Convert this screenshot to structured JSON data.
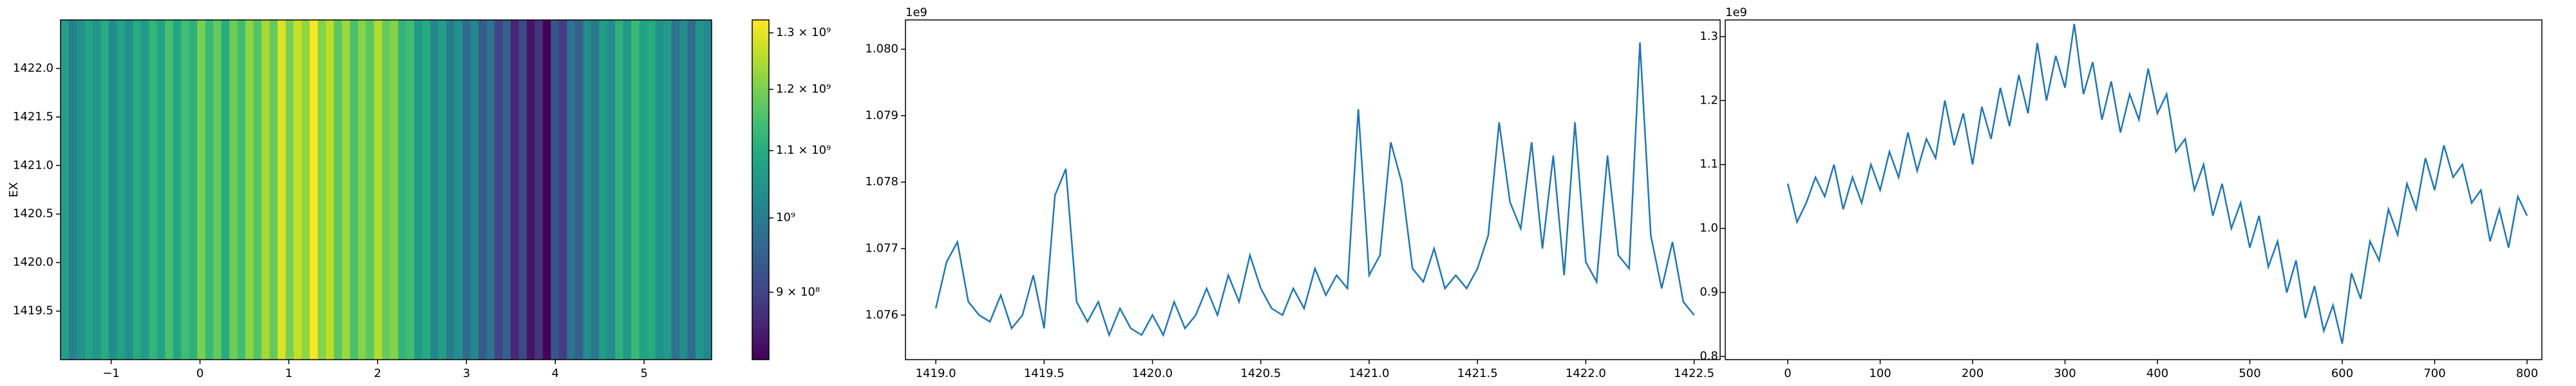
{
  "chart_data": [
    {
      "type": "heatmap",
      "y_label": "EX",
      "colormap": "viridis",
      "log_color": true,
      "xlim": [
        -1.57,
        5.76
      ],
      "ylim": [
        1419.0,
        1422.5
      ],
      "xticks": [
        {
          "value": -1,
          "label": "−1"
        },
        0,
        1,
        2,
        3,
        4,
        5
      ],
      "yticks": [
        1419.5,
        {
          "value": 1420,
          "label": "1420.0"
        },
        1420.5,
        {
          "value": 1421,
          "label": "1421.0"
        },
        1421.5,
        {
          "value": 1422,
          "label": "1422.0"
        }
      ],
      "clim": [
        818000000.0,
        1324000000.0
      ],
      "cticks": [
        {
          "value": 900000000.0,
          "label": "9 × 10⁸"
        },
        {
          "value": 1000000000.0,
          "label": "10⁹"
        },
        {
          "value": 1100000000.0,
          "label": "1.1 × 10⁹"
        },
        {
          "value": 1200000000.0,
          "label": "1.2 × 10⁹"
        },
        {
          "value": 1300000000.0,
          "label": "1.3 × 10⁹"
        }
      ],
      "values": [
        1070000000.0,
        1010000000.0,
        1040000000.0,
        1080000000.0,
        1050000000.0,
        1100000000.0,
        1030000000.0,
        1080000000.0,
        1040000000.0,
        1100000000.0,
        1060000000.0,
        1120000000.0,
        1080000000.0,
        1150000000.0,
        1090000000.0,
        1140000000.0,
        1110000000.0,
        1200000000.0,
        1130000000.0,
        1180000000.0,
        1100000000.0,
        1190000000.0,
        1140000000.0,
        1220000000.0,
        1160000000.0,
        1240000000.0,
        1180000000.0,
        1290000000.0,
        1200000000.0,
        1270000000.0,
        1220000000.0,
        1320000000.0,
        1210000000.0,
        1260000000.0,
        1170000000.0,
        1230000000.0,
        1150000000.0,
        1210000000.0,
        1170000000.0,
        1250000000.0,
        1180000000.0,
        1210000000.0,
        1120000000.0,
        1140000000.0,
        1060000000.0,
        1100000000.0,
        1020000000.0,
        1070000000.0,
        1000000000.0,
        1040000000.0,
        970000000.0,
        1020000000.0,
        940000000.0,
        980000000.0,
        900000000.0,
        950000000.0,
        860000000.0,
        910000000.0,
        840000000.0,
        880000000.0,
        820000000.0,
        930000000.0,
        890000000.0,
        980000000.0,
        950000000.0,
        1030000000.0,
        990000000.0,
        1070000000.0,
        1030000000.0,
        1110000000.0,
        1060000000.0,
        1130000000.0,
        1080000000.0,
        1100000000.0,
        1040000000.0,
        1060000000.0,
        980000000.0,
        1030000000.0,
        970000000.0,
        1050000000.0,
        1020000000.0
      ]
    },
    {
      "type": "line",
      "offset_text": "1e9",
      "color": "#1f77b4",
      "xlim": [
        1418.86,
        1422.62
      ],
      "ylim": [
        1.07533,
        1.08044
      ],
      "xticks": [
        {
          "value": 1419,
          "label": "1419.0"
        },
        1419.5,
        {
          "value": 1420,
          "label": "1420.0"
        },
        1420.5,
        {
          "value": 1421,
          "label": "1421.0"
        },
        1421.5,
        {
          "value": 1422,
          "label": "1422.0"
        },
        1422.5
      ],
      "yticks": [
        1.076,
        1.077,
        1.078,
        1.079,
        {
          "value": 1.08,
          "label": "1.080"
        }
      ],
      "x": [
        1419.0,
        1419.05,
        1419.1,
        1419.15,
        1419.2,
        1419.25,
        1419.3,
        1419.35,
        1419.4,
        1419.45,
        1419.5,
        1419.55,
        1419.6,
        1419.65,
        1419.7,
        1419.75,
        1419.8,
        1419.85,
        1419.9,
        1419.95,
        1420.0,
        1420.05,
        1420.1,
        1420.15,
        1420.2,
        1420.25,
        1420.3,
        1420.35,
        1420.4,
        1420.45,
        1420.5,
        1420.55,
        1420.6,
        1420.65,
        1420.7,
        1420.75,
        1420.8,
        1420.85,
        1420.9,
        1420.95,
        1421.0,
        1421.05,
        1421.1,
        1421.15,
        1421.2,
        1421.25,
        1421.3,
        1421.35,
        1421.4,
        1421.45,
        1421.5,
        1421.55,
        1421.6,
        1421.65,
        1421.7,
        1421.75,
        1421.8,
        1421.85,
        1421.9,
        1421.95,
        1422.0,
        1422.05,
        1422.1,
        1422.15,
        1422.2,
        1422.25,
        1422.3,
        1422.35,
        1422.4,
        1422.45,
        1422.5
      ],
      "values": [
        1.0761,
        1.0768,
        1.0771,
        1.0762,
        1.076,
        1.0759,
        1.0763,
        1.0758,
        1.076,
        1.0766,
        1.0758,
        1.0778,
        1.0782,
        1.0762,
        1.0759,
        1.0762,
        1.0757,
        1.0761,
        1.0758,
        1.0757,
        1.076,
        1.0757,
        1.0762,
        1.0758,
        1.076,
        1.0764,
        1.076,
        1.0766,
        1.0762,
        1.0769,
        1.0764,
        1.0761,
        1.076,
        1.0764,
        1.0761,
        1.0767,
        1.0763,
        1.0766,
        1.0764,
        1.0791,
        1.0766,
        1.0769,
        1.0786,
        1.078,
        1.0767,
        1.0765,
        1.077,
        1.0764,
        1.0766,
        1.0764,
        1.0767,
        1.0772,
        1.0789,
        1.0777,
        1.0773,
        1.0786,
        1.077,
        1.0784,
        1.0766,
        1.0789,
        1.0768,
        1.0765,
        1.0784,
        1.0769,
        1.0767,
        1.0801,
        1.0772,
        1.0764,
        1.0771,
        1.0762,
        1.076
      ]
    },
    {
      "type": "line",
      "offset_text": "1e9",
      "color": "#1f77b4",
      "xlim": [
        -67.6,
        816
      ],
      "ylim": [
        0.795,
        1.326
      ],
      "xticks": [
        0,
        100,
        200,
        300,
        400,
        500,
        600,
        700,
        800
      ],
      "yticks": [
        0.8,
        0.9,
        {
          "value": 1.0,
          "label": "1.0"
        },
        1.1,
        1.2,
        1.3
      ],
      "x": [
        0,
        10,
        20,
        30,
        40,
        50,
        60,
        70,
        80,
        90,
        100,
        110,
        120,
        130,
        140,
        150,
        160,
        170,
        180,
        190,
        200,
        210,
        220,
        230,
        240,
        250,
        260,
        270,
        280,
        290,
        300,
        310,
        320,
        330,
        340,
        350,
        360,
        370,
        380,
        390,
        400,
        410,
        420,
        430,
        440,
        450,
        460,
        470,
        480,
        490,
        500,
        510,
        520,
        530,
        540,
        550,
        560,
        570,
        580,
        590,
        600,
        610,
        620,
        630,
        640,
        650,
        660,
        670,
        680,
        690,
        700,
        710,
        720,
        730,
        740,
        750,
        760,
        770,
        780,
        790,
        800
      ],
      "values": [
        1.07,
        1.01,
        1.04,
        1.08,
        1.05,
        1.1,
        1.03,
        1.08,
        1.04,
        1.1,
        1.06,
        1.12,
        1.08,
        1.15,
        1.09,
        1.14,
        1.11,
        1.2,
        1.13,
        1.18,
        1.1,
        1.19,
        1.14,
        1.22,
        1.16,
        1.24,
        1.18,
        1.29,
        1.2,
        1.27,
        1.22,
        1.32,
        1.21,
        1.26,
        1.17,
        1.23,
        1.15,
        1.21,
        1.17,
        1.25,
        1.18,
        1.21,
        1.12,
        1.14,
        1.06,
        1.1,
        1.02,
        1.07,
        1.0,
        1.04,
        0.97,
        1.02,
        0.94,
        0.98,
        0.9,
        0.95,
        0.86,
        0.91,
        0.84,
        0.88,
        0.82,
        0.93,
        0.89,
        0.98,
        0.95,
        1.03,
        0.99,
        1.07,
        1.03,
        1.11,
        1.06,
        1.13,
        1.08,
        1.1,
        1.04,
        1.06,
        0.98,
        1.03,
        0.97,
        1.05,
        1.02
      ]
    }
  ]
}
